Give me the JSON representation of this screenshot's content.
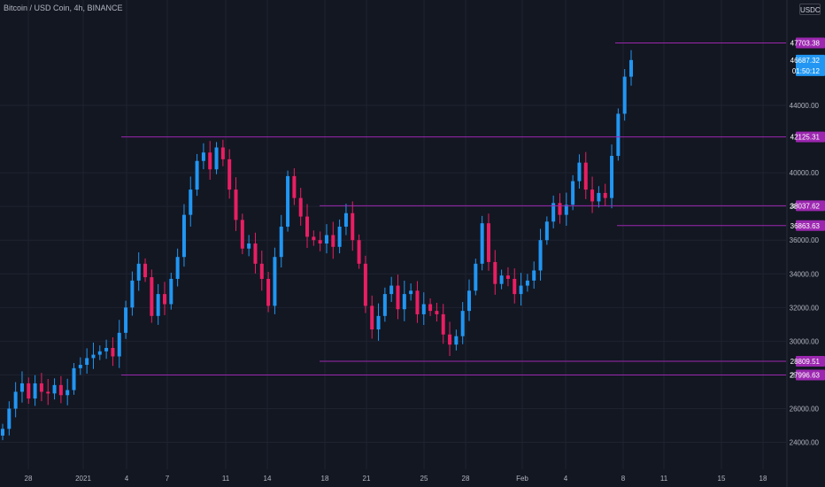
{
  "header": {
    "symbol": "Bitcoin / USD Coin, 4h, BINANCE",
    "currency": "USDC"
  },
  "colors": {
    "background": "#131722",
    "grid": "#1f2330",
    "up": "#2196f3",
    "down": "#e91e63",
    "level": "#9c27b0",
    "axis_text": "#b2b5be",
    "price_tag": "#2196f3"
  },
  "chart_data": {
    "type": "candlestick",
    "x_axis_ticks": [
      "28",
      "2021",
      "4",
      "7",
      "11",
      "14",
      "18",
      "21",
      "25",
      "28",
      "Feb",
      "4",
      "8",
      "11",
      "15",
      "18"
    ],
    "y_axis_ticks": [
      24000,
      26000,
      28000,
      30000,
      32000,
      34000,
      36000,
      38000,
      40000,
      44000
    ],
    "ylim": [
      22400,
      49200
    ],
    "price_label": "46687.32",
    "countdown_label": "01:50:12",
    "levels": [
      {
        "value": 47703.38,
        "label": "47703.38"
      },
      {
        "value": 42125.31,
        "label": "42125.31"
      },
      {
        "value": 38037.62,
        "label": "38037.62"
      },
      {
        "value": 36863.63,
        "label": "36863.63"
      },
      {
        "value": 28809.51,
        "label": "28809.51"
      },
      {
        "value": 27996.63,
        "label": "27996.63"
      }
    ],
    "closes": [
      24800,
      26000,
      27000,
      27500,
      26600,
      27500,
      27000,
      26900,
      27400,
      26800,
      27100,
      28400,
      28600,
      29000,
      29200,
      29400,
      29600,
      29100,
      30500,
      32000,
      33600,
      34600,
      33800,
      31500,
      32800,
      32200,
      33700,
      35000,
      37500,
      39000,
      40700,
      41200,
      40200,
      41500,
      40800,
      39000,
      37200,
      35500,
      35800,
      34600,
      33700,
      32100,
      35000,
      36800,
      39800,
      38500,
      37400,
      36200,
      36000,
      35800,
      36300,
      35600,
      36800,
      37600,
      36000,
      34600,
      32100,
      30700,
      31500,
      32800,
      33300,
      31900,
      32800,
      33000,
      31600,
      32200,
      31800,
      31600,
      30400,
      29800,
      30300,
      31800,
      33000,
      34600,
      37000,
      34700,
      33400,
      33900,
      33700,
      32800,
      33300,
      33600,
      34200,
      36000,
      37100,
      38200,
      37500,
      38100,
      39500,
      40600,
      39000,
      38300,
      38800,
      38500,
      41000,
      43500,
      45700,
      46687.32
    ]
  }
}
